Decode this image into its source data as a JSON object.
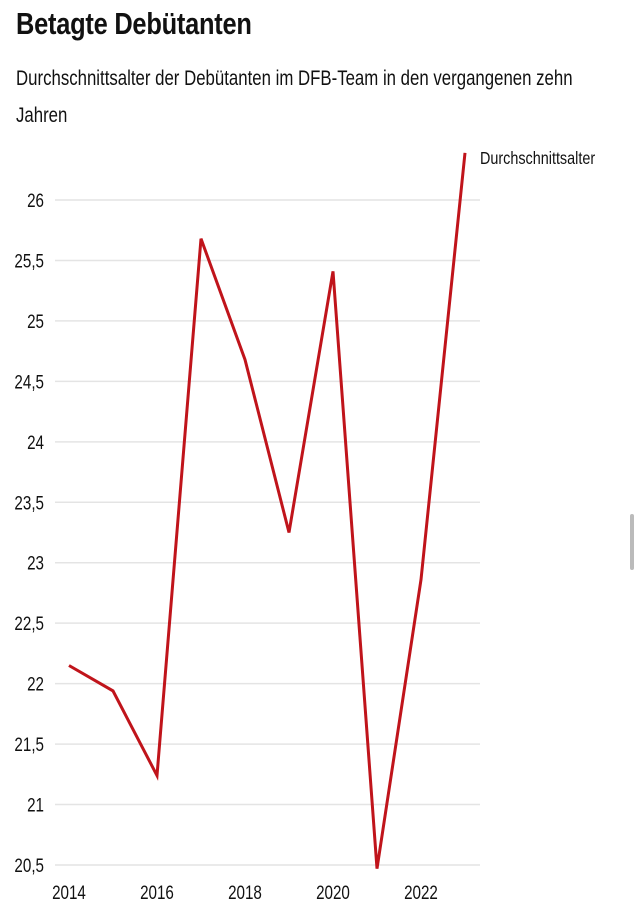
{
  "header": {
    "title": "Betagte Debütanten",
    "subtitle": "Durchschnittsalter der Debütanten im DFB-Team in den vergangenen zehn Jahren"
  },
  "chart_data": {
    "type": "line",
    "title": "Betagte Debütanten",
    "subtitle": "Durchschnittsalter der Debütanten im DFB-Team in den vergangenen zehn Jahren",
    "x": [
      2014,
      2015,
      2016,
      2017,
      2018,
      2019,
      2020,
      2021,
      2022,
      2023
    ],
    "series": [
      {
        "name": "Durchschnittsalter",
        "color": "#c0141b",
        "values": [
          22.15,
          21.94,
          21.24,
          25.68,
          24.68,
          23.25,
          25.41,
          20.47,
          22.86,
          26.39
        ]
      }
    ],
    "xticks": [
      "2014",
      "2016",
      "2018",
      "2020",
      "2022"
    ],
    "yticks": [
      "20,5",
      "21",
      "21,5",
      "22",
      "22,5",
      "23",
      "23,5",
      "24",
      "24,5",
      "25",
      "25,5",
      "26"
    ],
    "ylim": [
      20.5,
      26
    ],
    "xlim": [
      2014,
      2023
    ],
    "grid": true,
    "legend": "end-of-line label"
  }
}
